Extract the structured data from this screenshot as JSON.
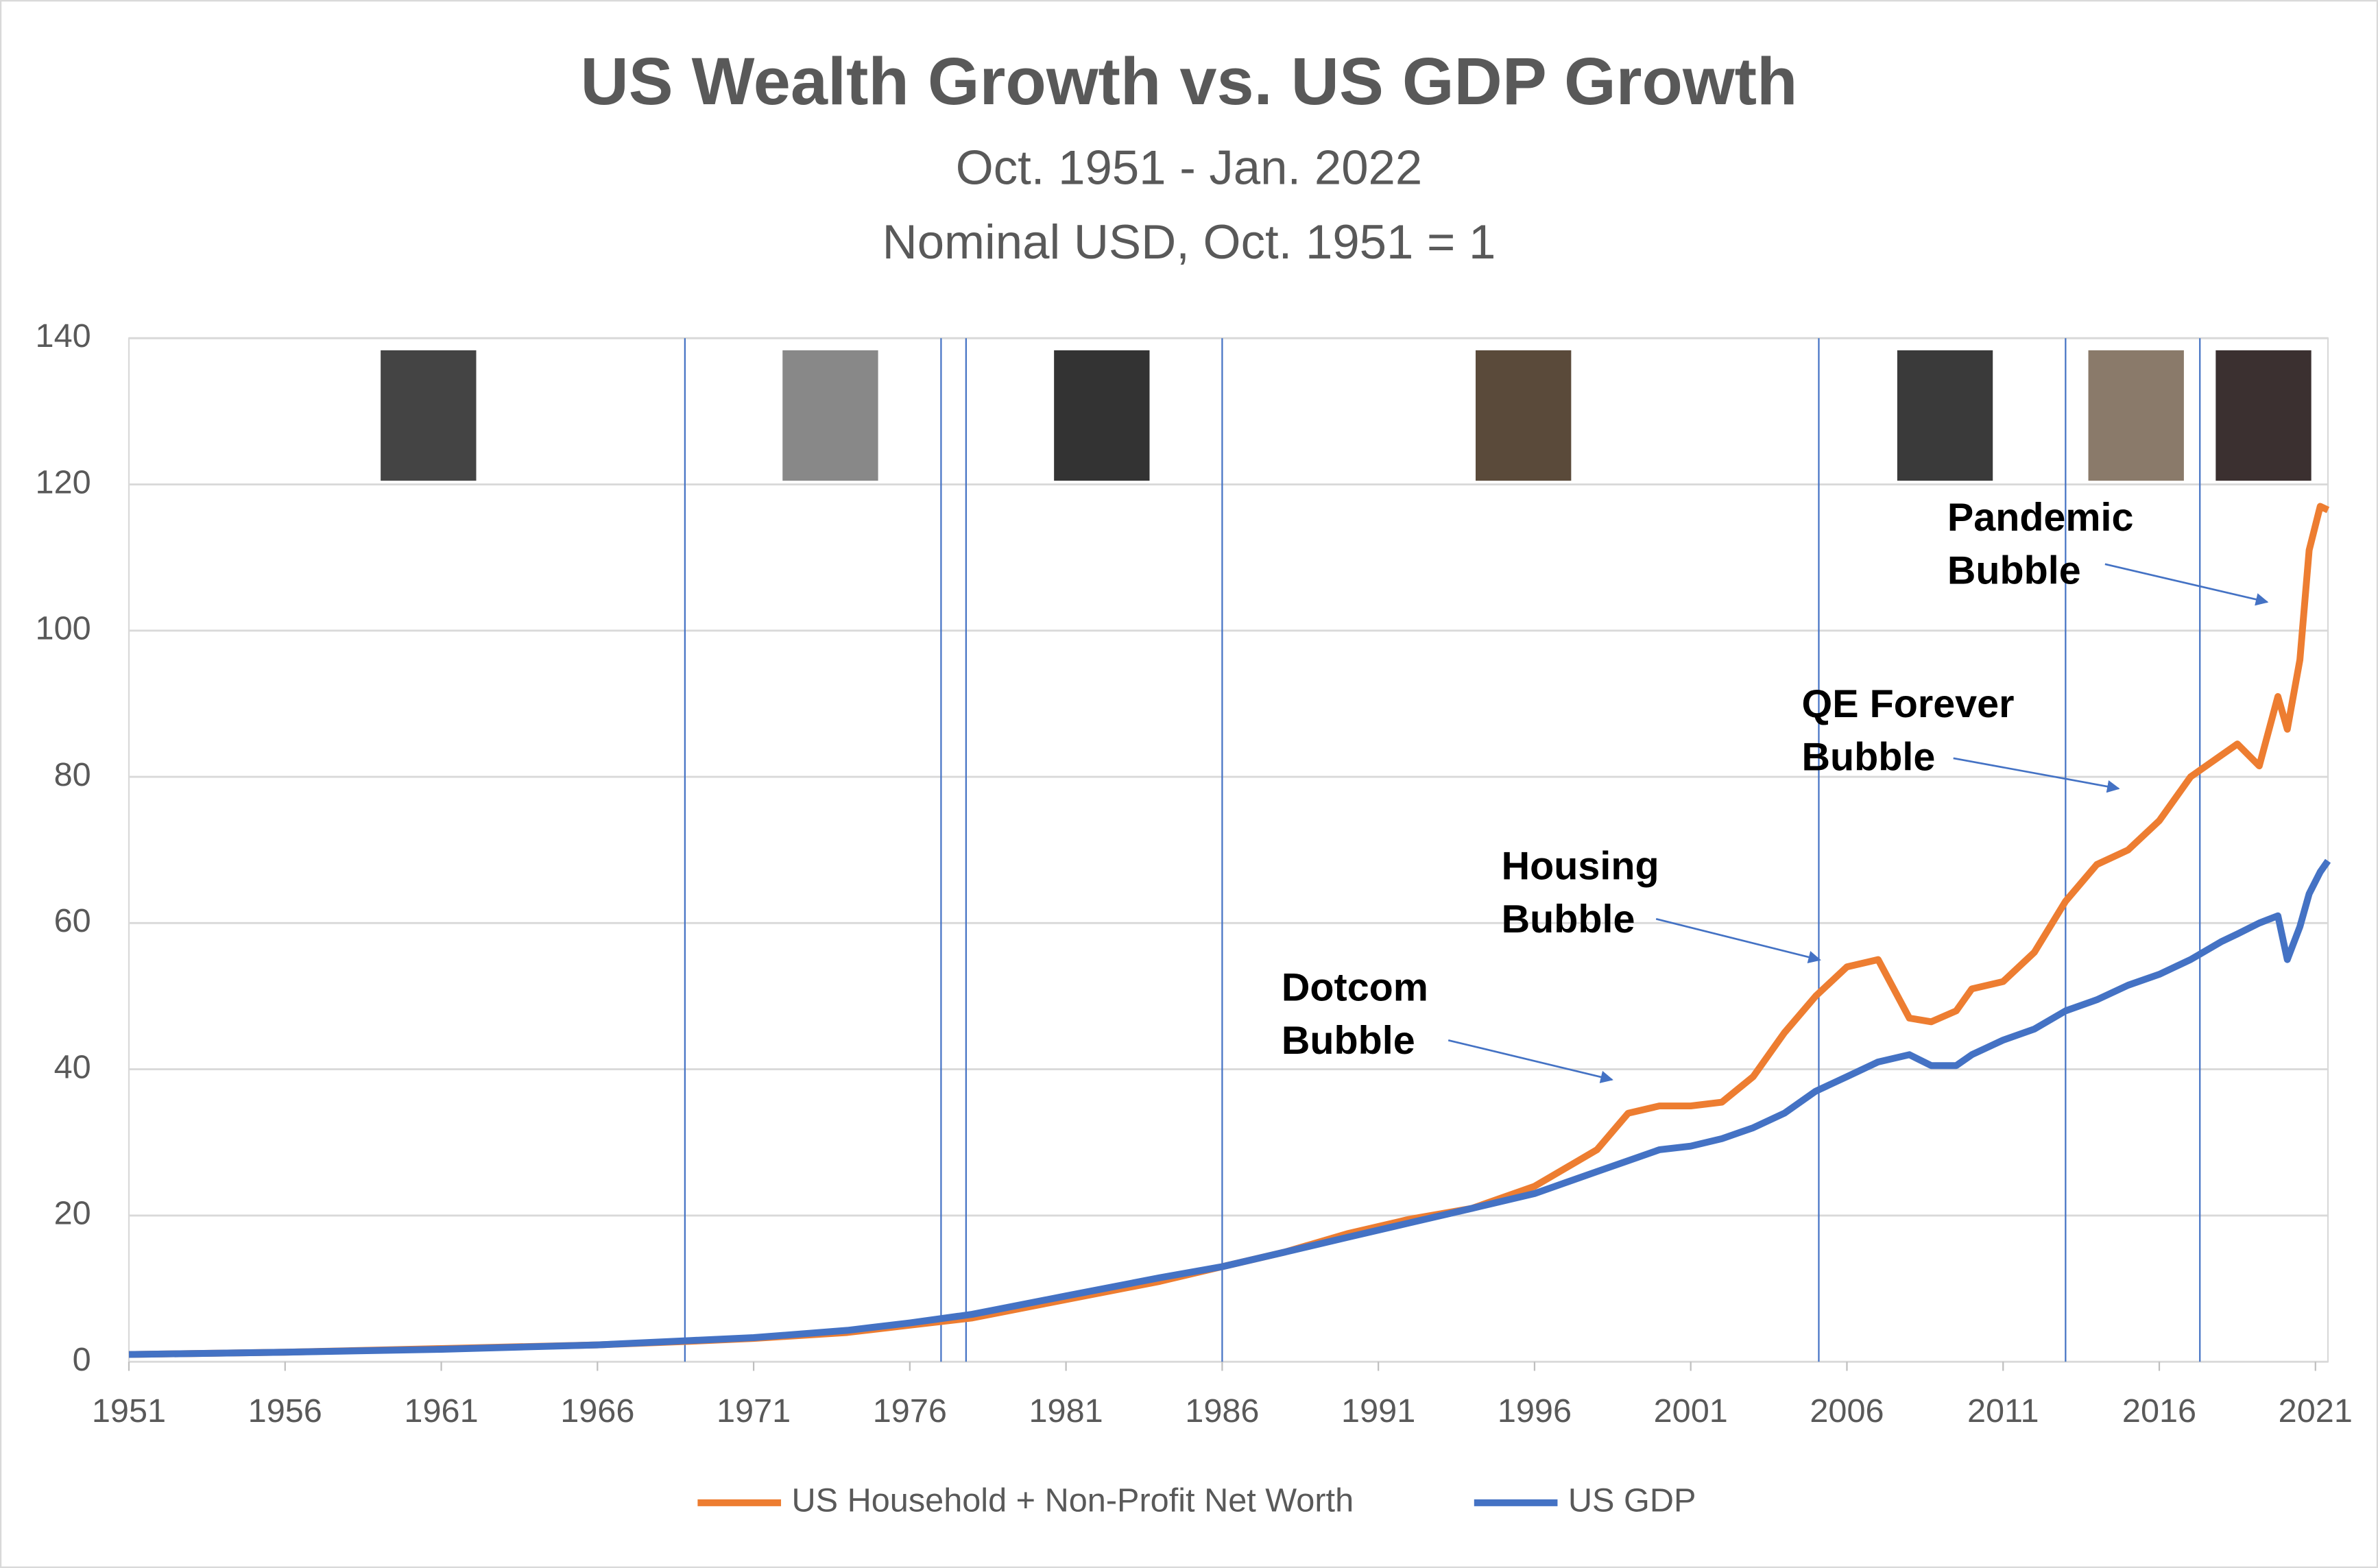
{
  "chart_data": {
    "type": "line",
    "title": "US Wealth Growth vs. US GDP Growth",
    "subtitle": [
      "Oct. 1951 - Jan. 2022",
      "Nominal USD, Oct. 1951 = 1"
    ],
    "x": [
      1951,
      1956,
      1961,
      1966,
      1969,
      1971,
      1974,
      1976,
      1978,
      1981,
      1984,
      1986,
      1988,
      1990,
      1992,
      1994,
      1996,
      1998,
      1999,
      2000,
      2001,
      2002,
      2003,
      2004,
      2005,
      2006,
      2007,
      2008,
      2008.7,
      2009.5,
      2010,
      2011,
      2012,
      2013,
      2014,
      2015,
      2016,
      2017,
      2018,
      2018.5,
      2019.2,
      2019.8,
      2020.1,
      2020.5,
      2020.8,
      2021.15,
      2021.4
    ],
    "series": [
      {
        "name": "US Household + Non-Profit Net Worth",
        "color": "#ed7d31",
        "values": [
          1,
          1.3,
          1.8,
          2.3,
          2.8,
          3.2,
          4.0,
          5.0,
          6.0,
          8.5,
          11,
          13,
          15,
          17.5,
          19.5,
          21,
          24,
          29,
          34,
          35,
          35,
          35.5,
          39,
          45,
          50,
          54,
          55,
          47,
          46.5,
          48,
          51,
          52,
          56,
          63,
          68,
          70,
          74,
          80,
          83,
          84.5,
          81.5,
          91,
          86.5,
          96,
          111,
          117,
          116.5
        ]
      },
      {
        "name": "US GDP",
        "color": "#4472c4",
        "values": [
          1,
          1.3,
          1.7,
          2.3,
          2.9,
          3.3,
          4.3,
          5.3,
          6.5,
          9,
          11.5,
          13,
          15,
          17,
          19,
          21,
          23,
          26,
          27.5,
          29,
          29.5,
          30.5,
          32,
          34,
          37,
          39,
          41,
          42,
          40.5,
          40.5,
          42,
          44,
          45.5,
          48,
          49.5,
          51.5,
          53,
          55,
          57.5,
          58.5,
          60,
          61,
          55,
          59.5,
          64,
          67,
          68.5
        ]
      }
    ],
    "xlim": [
      1951,
      2021.4
    ],
    "xticks": [
      1951,
      1956,
      1961,
      1966,
      1971,
      1976,
      1981,
      1986,
      1991,
      1996,
      2001,
      2006,
      2011,
      2016,
      2021
    ],
    "ylim": [
      0,
      140
    ],
    "yticks": [
      0,
      20,
      40,
      60,
      80,
      100,
      120,
      140
    ],
    "grid": true,
    "vlines": [
      1968.8,
      1977.0,
      1977.8,
      1986.0,
      2005.1,
      2013.0,
      2017.3
    ],
    "vline_color": "#4472c4",
    "legend": "bottom",
    "annotations": [
      [
        "Dotcom",
        "Bubble"
      ],
      [
        "Housing",
        "Bubble"
      ],
      [
        "QE Forever",
        "Bubble"
      ],
      [
        "Pandemic",
        "Bubble"
      ]
    ]
  }
}
